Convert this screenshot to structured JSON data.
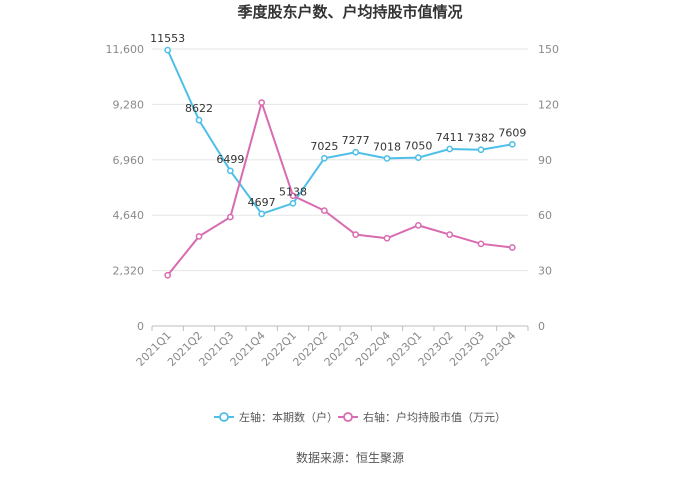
{
  "chart_data": {
    "type": "line",
    "title": "季度股东户数、户均持股市值情况",
    "categories": [
      "2021Q1",
      "2021Q2",
      "2021Q3",
      "2021Q4",
      "2022Q1",
      "2022Q2",
      "2022Q3",
      "2022Q4",
      "2023Q1",
      "2023Q2",
      "2023Q3",
      "2023Q4"
    ],
    "left_axis": {
      "ylim": [
        0,
        11600
      ],
      "ticks": [
        "0",
        "2,320",
        "4,640",
        "6,960",
        "9,280",
        "11,600"
      ],
      "tick_values": [
        0,
        2320,
        4640,
        6960,
        9280,
        11600
      ]
    },
    "right_axis": {
      "ylim": [
        0,
        150
      ],
      "ticks": [
        "0",
        "30",
        "60",
        "90",
        "120",
        "150"
      ],
      "tick_values": [
        0,
        30,
        60,
        90,
        120,
        150
      ]
    },
    "series": [
      {
        "name": "左轴：本期数（户）",
        "axis": "left",
        "color": "#4dbfe8",
        "values": [
          11553,
          8622,
          6499,
          4697,
          5138,
          7025,
          7277,
          7018,
          7050,
          7411,
          7382,
          7609
        ],
        "labels": [
          "11553",
          "8622",
          "6499",
          "4697",
          "5138",
          "7025",
          "7277",
          "7018",
          "7050",
          "7411",
          "7382",
          "7609"
        ]
      },
      {
        "name": "右轴：户均持股市值（万元）",
        "axis": "right",
        "color": "#d96bb1",
        "values": [
          27.5,
          48.5,
          59,
          121,
          70.5,
          62.5,
          49.5,
          47.5,
          54.5,
          49.5,
          44.5,
          42.5
        ]
      }
    ],
    "grid": true,
    "legend_position": "bottom-center"
  },
  "source_text": "数据来源：恒生聚源"
}
